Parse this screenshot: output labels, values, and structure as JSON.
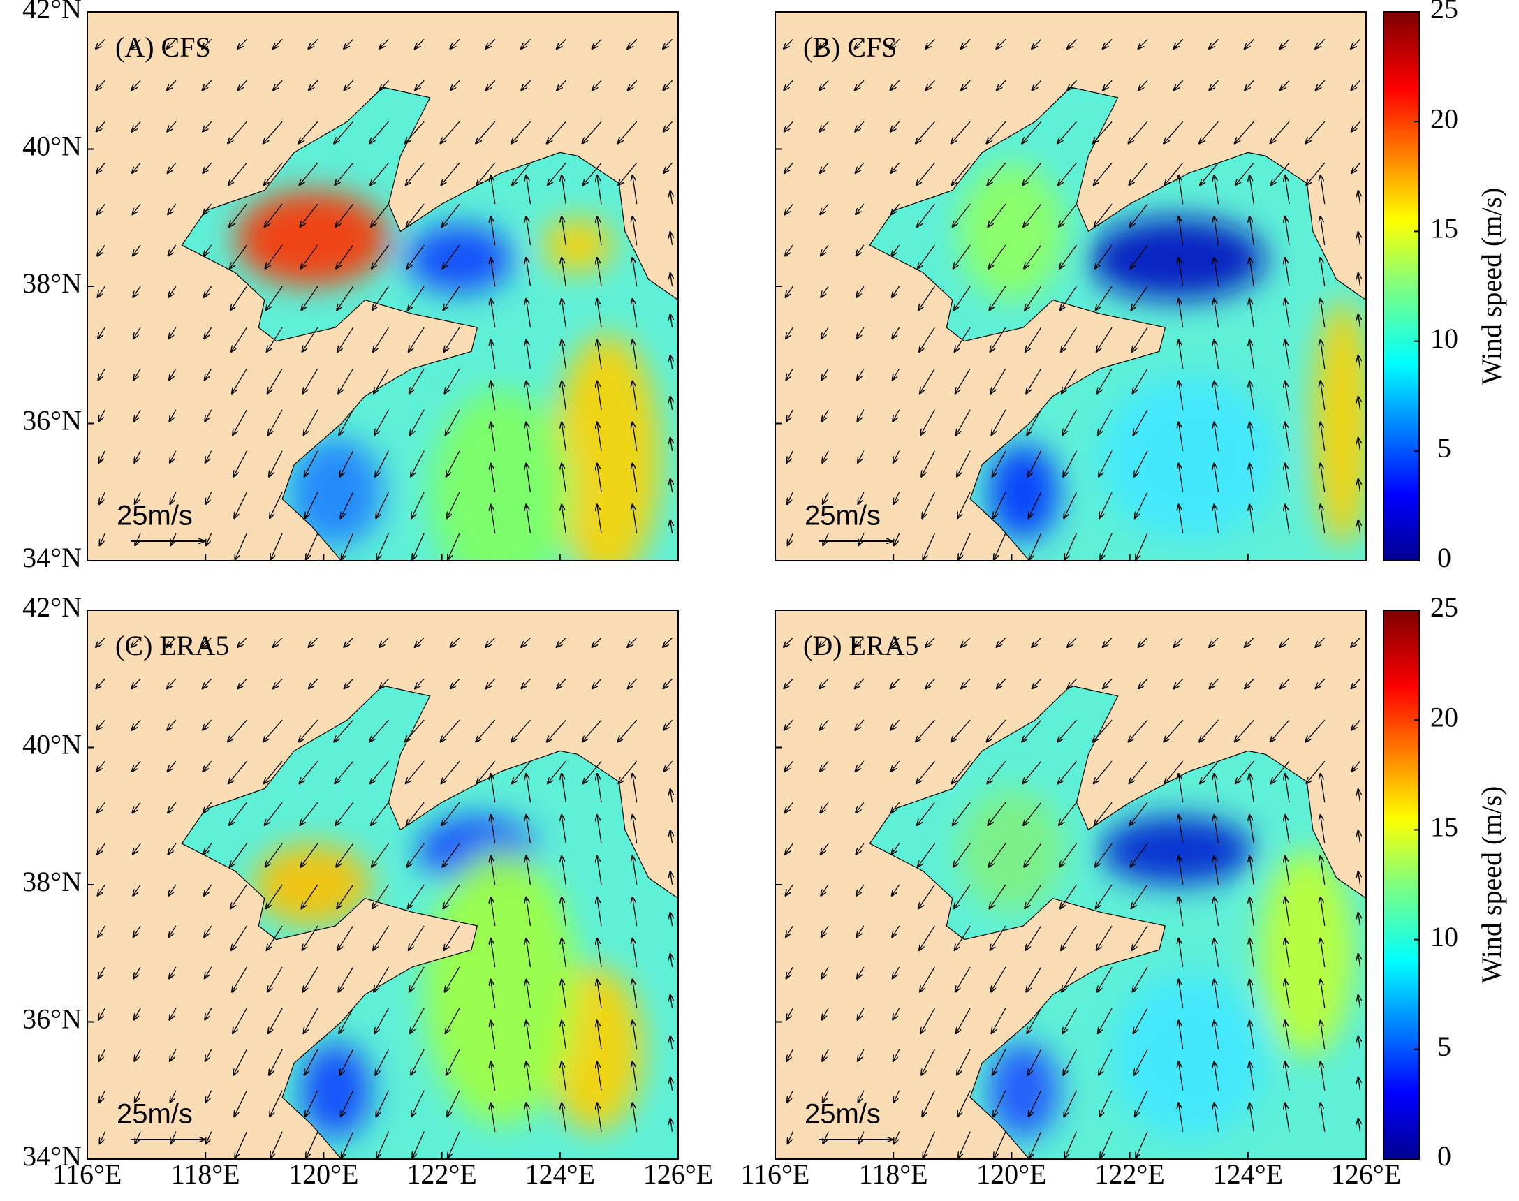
{
  "panels": [
    {
      "label": "(A) CFS",
      "scale_label": "25m/s"
    },
    {
      "label": "(B) CFS",
      "scale_label": "25m/s"
    },
    {
      "label": "(C) ERA5",
      "scale_label": "25m/s"
    },
    {
      "label": "(D) ERA5",
      "scale_label": "25m/s"
    }
  ],
  "lat_ticks": [
    "42°N",
    "40°N",
    "38°N",
    "36°N",
    "34°N"
  ],
  "lon_ticks": [
    "116°E",
    "118°E",
    "120°E",
    "122°E",
    "124°E",
    "126°E"
  ],
  "colorbars": [
    {
      "label": "Wind speed (m/s)",
      "lim": [
        0,
        25
      ],
      "ticks": [
        0,
        5,
        10,
        15,
        20,
        25
      ]
    },
    {
      "label": "Wind speed (m/s)",
      "lim": [
        0,
        25
      ],
      "ticks": [
        0,
        5,
        10,
        15,
        20,
        25
      ]
    }
  ]
}
